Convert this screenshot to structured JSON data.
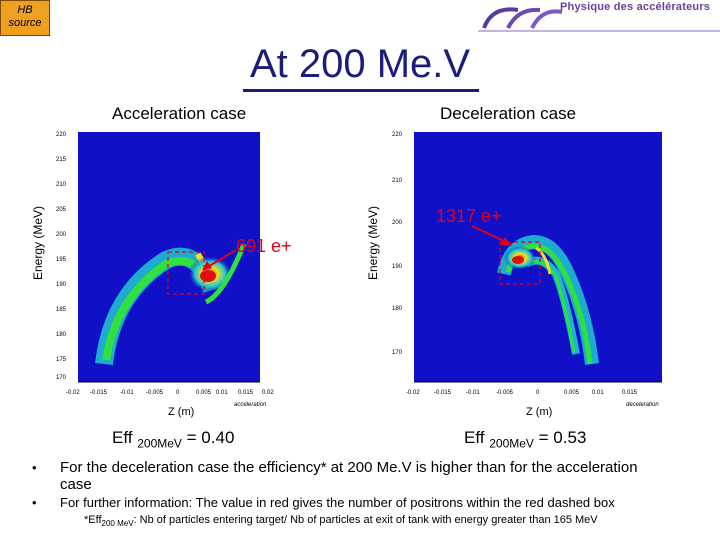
{
  "header": {
    "tag_line1": "HB",
    "tag_line2": "source",
    "logo_text": "Physique des accélérateurs"
  },
  "title": "At 200 Me.V",
  "left": {
    "heading": "Acceleration case",
    "ylabel": "Energy (MeV)",
    "xlabel": "Z (m)",
    "annotation": "691 e+",
    "eff_label": "Eff",
    "eff_sub": "200MeV",
    "eff_value": "= 0.40",
    "y_ticks": [
      "220",
      "215",
      "210",
      "205",
      "200",
      "195",
      "190",
      "185",
      "180",
      "175",
      "170"
    ],
    "x_ticks": [
      "-0.02",
      "-0.015",
      "-0.01",
      "-0.005",
      "0",
      "0.005",
      "0.01",
      "0.015",
      "0.02"
    ],
    "axis_word": "acceleration"
  },
  "right": {
    "heading": "Deceleration case",
    "ylabel": "Energy (MeV)",
    "xlabel": "Z (m)",
    "annotation": "1317 e+",
    "eff_label": "Eff",
    "eff_sub": "200MeV",
    "eff_value": "= 0.53",
    "y_ticks": [
      "220",
      "210",
      "200",
      "190",
      "180",
      "170"
    ],
    "x_ticks": [
      "-0.02",
      "-0.015",
      "-0.01",
      "-0.005",
      "0",
      "0.005",
      "0.01",
      "0.015"
    ],
    "axis_word": "deceleration"
  },
  "bullets": [
    "For the deceleration case the efficiency* at 200 Me.V is higher than for the acceleration case",
    "For further information: The value in red gives the number of positrons within the red dashed box"
  ],
  "footnote": {
    "prefix": "*Eff",
    "sub": "200 MeV",
    "text": ": Nb of particles entering target/ Nb of particles at exit of tank with energy greater than 165 MeV"
  },
  "colors": {
    "title": "#1a1d7a",
    "annotation": "#e0001a",
    "plot_bg": "#1010c8",
    "tag": "#f0a020"
  }
}
